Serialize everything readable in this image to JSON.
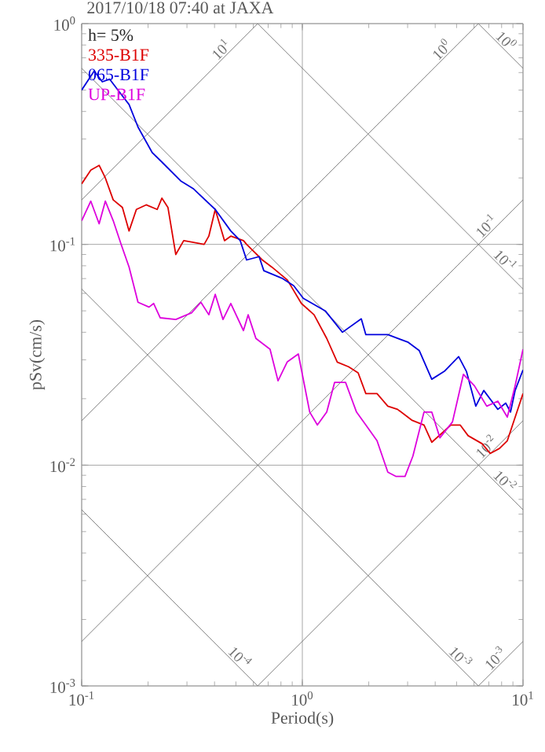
{
  "chart_data": {
    "type": "line",
    "title": "2017/10/18 07:40 at JAXA",
    "xlabel": "Period(s)",
    "ylabel": "pSv(cm/s)",
    "log": "xy",
    "grid": true,
    "legend": "top left",
    "xlim": [
      0.1,
      10
    ],
    "ylim": [
      0.001,
      1
    ],
    "xticks": [
      {
        "value": 0.1,
        "label": "10$^{-1}$"
      },
      {
        "value": 1,
        "label": "10$^{0}$"
      },
      {
        "value": 10,
        "label": "10$^{1}$"
      }
    ],
    "yticks": [
      {
        "value": 0.001,
        "label": "10$^{-3}$"
      },
      {
        "value": 0.01,
        "label": "10$^{-2}$"
      },
      {
        "value": 0.1,
        "label": "10$^{-1}$"
      },
      {
        "value": 1,
        "label": "10$^{0}$"
      }
    ],
    "annotations": [
      "h= 5%"
    ],
    "series": [
      {
        "name": "335-B1F",
        "color": "#dd0000",
        "x": [
          0.1,
          0.11,
          0.12,
          0.128,
          0.139,
          0.153,
          0.164,
          0.177,
          0.196,
          0.22,
          0.231,
          0.246,
          0.267,
          0.29,
          0.359,
          0.377,
          0.403,
          0.444,
          0.474,
          0.541,
          0.559,
          0.659,
          0.727,
          0.855,
          0.99,
          1.13,
          1.29,
          1.44,
          1.62,
          1.79,
          1.94,
          2.18,
          2.44,
          2.7,
          3.13,
          3.56,
          3.86,
          4.71,
          5.19,
          5.64,
          6.53,
          7.1,
          7.82,
          8.49,
          10
        ],
        "values": [
          0.188,
          0.217,
          0.228,
          0.2,
          0.159,
          0.147,
          0.115,
          0.144,
          0.151,
          0.144,
          0.162,
          0.147,
          0.09,
          0.104,
          0.1,
          0.109,
          0.144,
          0.104,
          0.109,
          0.104,
          0.1,
          0.085,
          0.079,
          0.069,
          0.054,
          0.048,
          0.0375,
          0.0293,
          0.0279,
          0.0262,
          0.0211,
          0.0211,
          0.0185,
          0.0179,
          0.016,
          0.0152,
          0.0127,
          0.0152,
          0.0152,
          0.0136,
          0.0125,
          0.0113,
          0.0119,
          0.0129,
          0.0211
        ]
      },
      {
        "name": "065-B1F",
        "color": "#0000dd",
        "x": [
          0.1,
          0.114,
          0.124,
          0.134,
          0.146,
          0.164,
          0.18,
          0.209,
          0.231,
          0.281,
          0.32,
          0.403,
          0.474,
          0.523,
          0.559,
          0.637,
          0.669,
          0.815,
          0.914,
          1.01,
          1.27,
          1.52,
          1.85,
          1.94,
          2.44,
          3.02,
          3.39,
          3.86,
          4.4,
          5.11,
          5.54,
          6.11,
          6.64,
          7.69,
          8.35,
          8.78,
          9.21,
          10
        ],
        "values": [
          0.5,
          0.61,
          0.545,
          0.56,
          0.5,
          0.43,
          0.34,
          0.26,
          0.236,
          0.194,
          0.179,
          0.144,
          0.115,
          0.104,
          0.085,
          0.088,
          0.076,
          0.07,
          0.065,
          0.057,
          0.05,
          0.04,
          0.046,
          0.039,
          0.039,
          0.036,
          0.033,
          0.0245,
          0.0266,
          0.031,
          0.0266,
          0.0185,
          0.0218,
          0.0179,
          0.0191,
          0.0174,
          0.0218,
          0.027
        ]
      },
      {
        "name": "UP-B1F",
        "color": "#dd00dd",
        "x": [
          0.1,
          0.11,
          0.12,
          0.128,
          0.139,
          0.151,
          0.164,
          0.18,
          0.202,
          0.212,
          0.227,
          0.267,
          0.315,
          0.347,
          0.377,
          0.403,
          0.437,
          0.474,
          0.541,
          0.568,
          0.616,
          0.714,
          0.776,
          0.855,
          0.959,
          1.08,
          1.17,
          1.29,
          1.4,
          1.57,
          1.76,
          1.94,
          2.18,
          2.44,
          2.65,
          2.92,
          3.17,
          3.56,
          3.86,
          4.2,
          4.79,
          5.37,
          6.02,
          6.85,
          7.69,
          8.49,
          9.21,
          10
        ],
        "values": [
          0.128,
          0.157,
          0.124,
          0.157,
          0.128,
          0.1,
          0.079,
          0.0547,
          0.052,
          0.054,
          0.0465,
          0.0457,
          0.049,
          0.0547,
          0.048,
          0.0594,
          0.0457,
          0.054,
          0.0407,
          0.048,
          0.0375,
          0.0335,
          0.0241,
          0.0294,
          0.0319,
          0.0174,
          0.0152,
          0.0174,
          0.0237,
          0.0237,
          0.0174,
          0.0152,
          0.0129,
          0.0093,
          0.0089,
          0.0089,
          0.011,
          0.0174,
          0.0174,
          0.0133,
          0.0157,
          0.0258,
          0.0229,
          0.0185,
          0.0195,
          0.0165,
          0.0229,
          0.0335
        ]
      },
      {
        "name": "10$^{0}$",
        "color": "#707070",
        "x": [
          6.28,
          10
        ],
        "values": [
          1,
          0.628
        ]
      },
      {
        "name": "10$^{-1}$",
        "color": "#707070",
        "x": [
          0.628,
          10
        ],
        "values": [
          1,
          0.0628
        ]
      },
      {
        "name": "10$^{-2}$",
        "color": "#707070",
        "x": [
          0.1,
          10
        ],
        "values": [
          0.628,
          0.00628
        ]
      },
      {
        "name": "10$^{-3}$",
        "color": "#707070",
        "x": [
          0.1,
          6.28
        ],
        "values": [
          0.0628,
          0.001
        ]
      },
      {
        "name": "10$^{-4}$",
        "color": "#707070",
        "x": [
          0.1,
          0.628
        ],
        "values": [
          0.00628,
          0.001
        ]
      },
      {
        "name": "10$^{1}$",
        "color": "#707070",
        "x": [
          0.1,
          0.628
        ],
        "values": [
          0.159,
          1
        ]
      },
      {
        "name": "10$^{0}$",
        "color": "#707070",
        "x": [
          0.1,
          6.28
        ],
        "values": [
          0.0159,
          1
        ]
      },
      {
        "name": "10$^{-1}$",
        "color": "#707070",
        "x": [
          0.1,
          10
        ],
        "values": [
          0.00159,
          0.159
        ]
      },
      {
        "name": "10$^{-2}$",
        "color": "#707070",
        "x": [
          0.628,
          10
        ],
        "values": [
          0.001,
          0.0159
        ]
      },
      {
        "name": "10$^{-3}$",
        "color": "#707070",
        "x": [
          6.28,
          10
        ],
        "values": [
          0.001,
          0.00159
        ]
      }
    ]
  }
}
